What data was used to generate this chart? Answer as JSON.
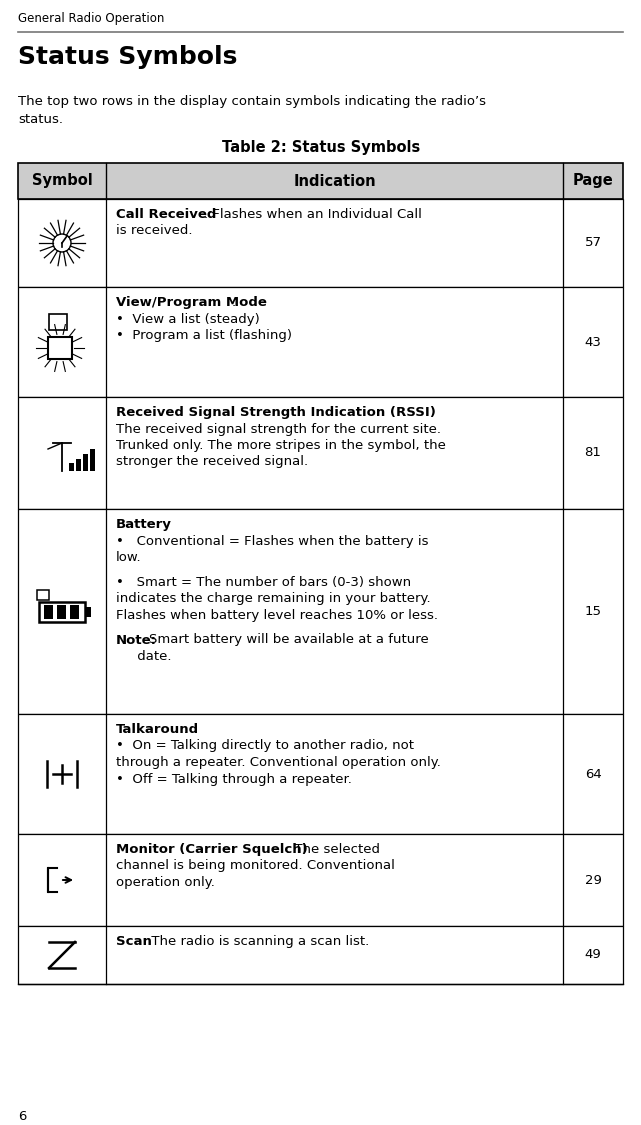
{
  "page_header": "General Radio Operation",
  "section_title": "Status Symbols",
  "intro_line1": "The top two rows in the display contain symbols indicating the radio’s",
  "intro_line2": "status.",
  "table_title": "Table 2: Status Symbols",
  "col_headers": [
    "Symbol",
    "Indication",
    "Page"
  ],
  "header_bg": "#cccccc",
  "bg_color": "#ffffff",
  "text_color": "#000000",
  "border_color": "#000000",
  "page_number": "6",
  "rows": [
    {
      "symbol_type": "call_received",
      "lines": [
        {
          "bold": "Call Received",
          "rest": ". Flashes when an Individual Call"
        },
        {
          "bold": "",
          "rest": "is received."
        }
      ],
      "page": "57"
    },
    {
      "symbol_type": "view_program",
      "lines": [
        {
          "bold": "View/Program Mode",
          "rest": "."
        },
        {
          "bold": "",
          "rest": "•  View a list (steady)"
        },
        {
          "bold": "",
          "rest": "•  Program a list (flashing)"
        }
      ],
      "page": "43"
    },
    {
      "symbol_type": "rssi",
      "lines": [
        {
          "bold": "Received Signal Strength Indication (RSSI)",
          "rest": "."
        },
        {
          "bold": "",
          "rest": "The received signal strength for the current site."
        },
        {
          "bold": "",
          "rest": "Trunked only. The more stripes in the symbol, the"
        },
        {
          "bold": "",
          "rest": "stronger the received signal."
        }
      ],
      "page": "81"
    },
    {
      "symbol_type": "battery",
      "lines": [
        {
          "bold": "Battery",
          "rest": ""
        },
        {
          "bold": "",
          "rest": "•   Conventional = Flashes when the battery is"
        },
        {
          "bold": "",
          "rest": "low."
        },
        {
          "bold": "",
          "rest": ""
        },
        {
          "bold": "",
          "rest": "•   Smart = The number of bars (0-3) shown"
        },
        {
          "bold": "",
          "rest": "indicates the charge remaining in your battery."
        },
        {
          "bold": "",
          "rest": "Flashes when battery level reaches 10% or less."
        },
        {
          "bold": "",
          "rest": ""
        },
        {
          "bold_inline": "Note:",
          "rest": "Smart battery will be available at a future"
        },
        {
          "bold": "",
          "rest": "     date."
        }
      ],
      "page": "15"
    },
    {
      "symbol_type": "talkaround",
      "lines": [
        {
          "bold": "Talkaround",
          "rest": "."
        },
        {
          "bold": "",
          "rest": "•  On = Talking directly to another radio, not"
        },
        {
          "bold": "",
          "rest": "through a repeater. Conventional operation only."
        },
        {
          "bold": "",
          "rest": "•  Off = Talking through a repeater."
        }
      ],
      "page": "64"
    },
    {
      "symbol_type": "monitor",
      "lines": [
        {
          "bold": "Monitor (Carrier Squelch)",
          "rest": ". The selected"
        },
        {
          "bold": "",
          "rest": "channel is being monitored. Conventional"
        },
        {
          "bold": "",
          "rest": "operation only."
        }
      ],
      "page": "29"
    },
    {
      "symbol_type": "scan",
      "lines": [
        {
          "bold": "Scan",
          "rest": ". The radio is scanning a scan list."
        }
      ],
      "page": "49"
    }
  ]
}
